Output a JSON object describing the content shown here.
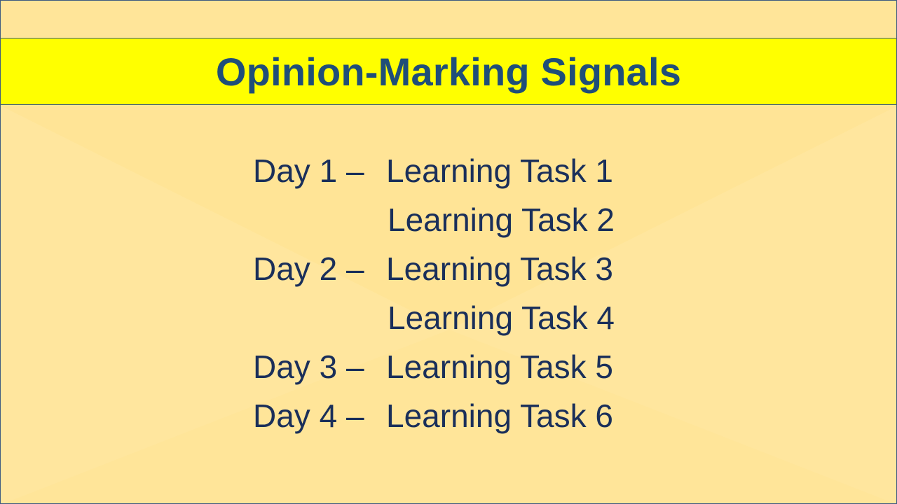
{
  "slide": {
    "title": "Opinion-Marking Signals",
    "rows": [
      {
        "day": "Day 1 – ",
        "task": "Learning Task 1"
      },
      {
        "day": "",
        "task": "Learning Task 2"
      },
      {
        "day": "Day 2 – ",
        "task": "Learning Task 3"
      },
      {
        "day": "",
        "task": "Learning Task 4"
      },
      {
        "day": "Day 3 – ",
        "task": "Learning Task 5"
      },
      {
        "day": "Day 4 – ",
        "task": "Learning Task 6"
      }
    ]
  },
  "colors": {
    "background": "#ffe599",
    "title_bar": "#ffff00",
    "title_text": "#1f4e79",
    "body_text": "#1a2f5a"
  }
}
